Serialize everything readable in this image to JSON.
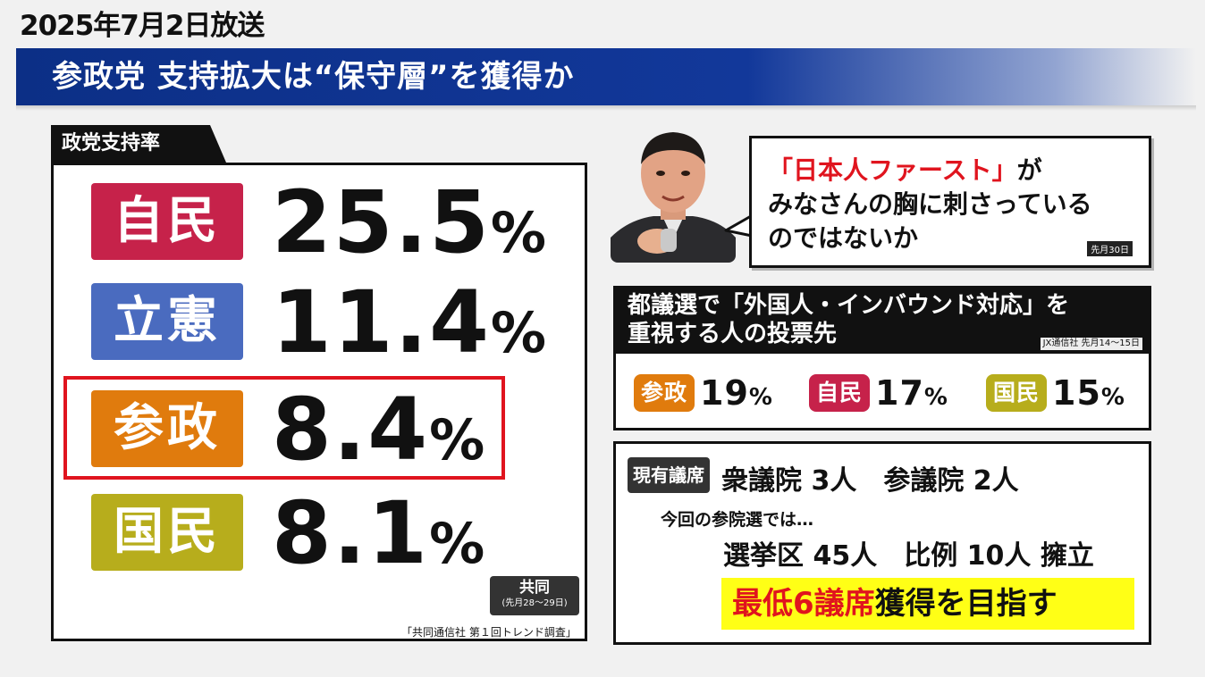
{
  "broadcast": {
    "date_label": "2025年7月2日放送"
  },
  "headline": {
    "text": "参政党 支持拡大は“保守層”を獲得か"
  },
  "support_panel": {
    "tab_label": "政党支持率",
    "rows": [
      {
        "party": "自民",
        "pct": "25.5",
        "color": "#c6224a"
      },
      {
        "party": "立憲",
        "pct": "11.4",
        "color": "#4a6bbf"
      },
      {
        "party": "参政",
        "pct": "8.4",
        "color": "#e07b0d"
      },
      {
        "party": "国民",
        "pct": "8.1",
        "color": "#b7ad1c"
      }
    ],
    "pct_symbol": "%",
    "highlight_color": "#e0141e",
    "source_name": "共同",
    "source_dates": "(先月28〜29日)",
    "survey_note": "「共同通信社 第１回トレンド調査」"
  },
  "quote": {
    "speaker_icon": "speaker-portrait-icon",
    "line1_red": "「日本人ファースト」",
    "line1_rest": "が",
    "line2": "みなさんの胸に刺さっている",
    "line3": "のではないか",
    "date": "先月30日"
  },
  "poll": {
    "header_line1": "都議選で「外国人・インバウンド対応」を",
    "header_line2": "重視する人の投票先",
    "source": "JX通信社 先月14〜15日",
    "items": [
      {
        "party": "参政",
        "pct": "19",
        "color": "#e07b0d"
      },
      {
        "party": "自民",
        "pct": "17",
        "color": "#c6224a"
      },
      {
        "party": "国民",
        "pct": "15",
        "color": "#b7ad1c"
      }
    ],
    "pct_symbol": "%"
  },
  "seats": {
    "tag": "現有議席",
    "current": "衆議院 3人　参議院 2人",
    "note": "今回の参院選では…",
    "candidates": "選挙区 45人　比例 10人 擁立",
    "goal_red": "最低6議席",
    "goal_rest": "獲得を目指す"
  }
}
